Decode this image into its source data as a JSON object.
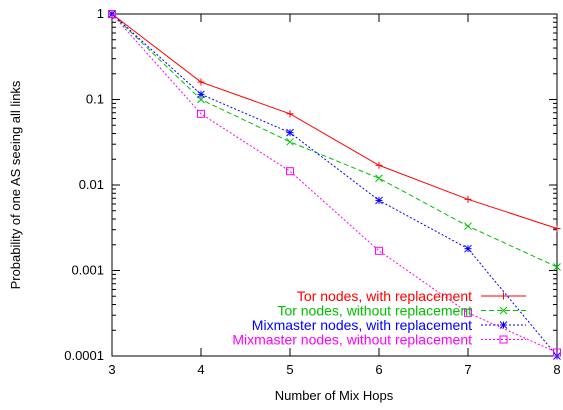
{
  "chart_data": {
    "type": "line",
    "xlabel": "Number of Mix Hops",
    "ylabel": "Probability of one AS seeing all links",
    "x": [
      3,
      4,
      5,
      6,
      7,
      8
    ],
    "xlim": [
      3,
      8
    ],
    "ylim": [
      0.0001,
      1
    ],
    "y_scale": "log",
    "x_ticks": [
      3,
      4,
      5,
      6,
      7,
      8
    ],
    "x_tick_labels": [
      "3",
      "4",
      "5",
      "6",
      "7",
      "8"
    ],
    "y_ticks": [
      0.0001,
      0.001,
      0.01,
      0.1,
      1
    ],
    "y_tick_labels": [
      "0.0001",
      "0.001",
      "0.01",
      "0.1",
      "1"
    ],
    "grid": false,
    "legend_position": "bottom-right",
    "series": [
      {
        "name": "Tor nodes, with replacement",
        "color": "#ff0000",
        "line_style": "solid",
        "marker": "plus",
        "values": [
          1,
          0.16,
          0.068,
          0.017,
          0.0068,
          0.0031
        ]
      },
      {
        "name": "Tor nodes, without replacement",
        "color": "#00c000",
        "line_style": "dashed",
        "marker": "cross",
        "values": [
          1,
          0.1,
          0.032,
          0.012,
          0.0033,
          0.0011
        ]
      },
      {
        "name": "Mixmaster nodes, with replacement",
        "color": "#0000ff",
        "line_style": "dotted",
        "marker": "star",
        "values": [
          1,
          0.115,
          0.041,
          0.0066,
          0.0018,
          0.0001
        ]
      },
      {
        "name": "Mixmaster nodes, without replacement",
        "color": "#ff00ff",
        "line_style": "dotted",
        "marker": "square",
        "values": [
          1,
          0.068,
          0.0145,
          0.0017,
          0.00032,
          0.00011
        ]
      }
    ]
  }
}
